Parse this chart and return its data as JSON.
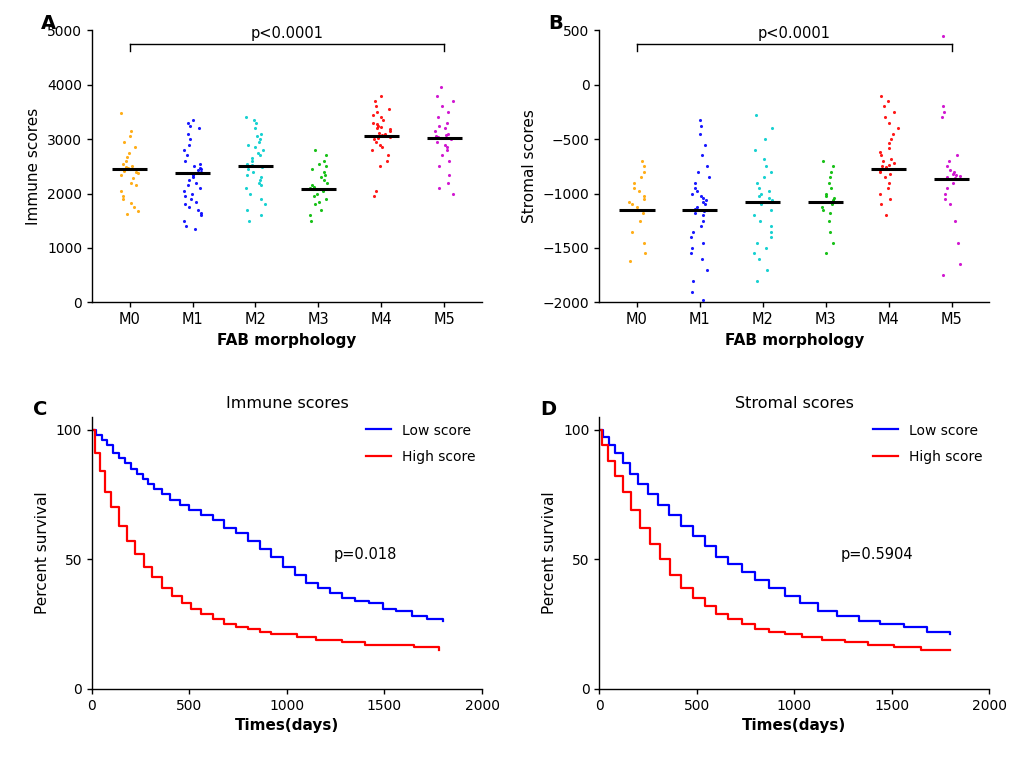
{
  "panel_A": {
    "title": "p<0.0001",
    "label": "A",
    "ylabel": "Immune scores",
    "xlabel": "FAB morphology",
    "categories": [
      "M0",
      "M1",
      "M2",
      "M3",
      "M4",
      "M5"
    ],
    "colors": [
      "#FFA500",
      "#0000FF",
      "#00CCCC",
      "#00BB00",
      "#FF0000",
      "#CC00CC"
    ],
    "medians": [
      2450,
      2380,
      2500,
      2080,
      3060,
      3020
    ],
    "ylim": [
      0,
      5000
    ],
    "yticks": [
      0,
      1000,
      2000,
      3000,
      4000,
      5000
    ],
    "data": {
      "M0": [
        1620,
        1680,
        1750,
        1820,
        1900,
        1960,
        2050,
        2150,
        2200,
        2280,
        2350,
        2380,
        2400,
        2420,
        2430,
        2440,
        2450,
        2460,
        2470,
        2480,
        2500,
        2550,
        2600,
        2680,
        2750,
        2850,
        2950,
        3050,
        3150,
        3480
      ],
      "M1": [
        1350,
        1400,
        1500,
        1600,
        1650,
        1700,
        1750,
        1800,
        1850,
        1900,
        1950,
        2000,
        2050,
        2100,
        2150,
        2200,
        2250,
        2300,
        2350,
        2380,
        2400,
        2430,
        2450,
        2470,
        2500,
        2550,
        2600,
        2700,
        2800,
        2900,
        3000,
        3100,
        3200,
        3250,
        3300,
        3350
      ],
      "M2": [
        1500,
        1600,
        1700,
        1800,
        1900,
        2000,
        2100,
        2150,
        2200,
        2250,
        2300,
        2350,
        2400,
        2450,
        2480,
        2500,
        2520,
        2550,
        2600,
        2650,
        2700,
        2750,
        2800,
        2850,
        2900,
        2950,
        3000,
        3050,
        3100,
        3200,
        3300,
        3350,
        3400
      ],
      "M3": [
        1500,
        1600,
        1700,
        1800,
        1850,
        1900,
        1950,
        2000,
        2050,
        2080,
        2100,
        2120,
        2150,
        2200,
        2250,
        2300,
        2350,
        2400,
        2450,
        2500,
        2550,
        2600,
        2700,
        2800
      ],
      "M4": [
        1950,
        2050,
        2500,
        2600,
        2700,
        2800,
        2850,
        2900,
        2950,
        3000,
        3020,
        3040,
        3060,
        3080,
        3100,
        3120,
        3150,
        3180,
        3200,
        3220,
        3250,
        3280,
        3300,
        3350,
        3400,
        3450,
        3500,
        3550,
        3600,
        3700,
        3800
      ],
      "M5": [
        2000,
        2100,
        2200,
        2350,
        2500,
        2600,
        2700,
        2800,
        2850,
        2900,
        2950,
        3000,
        3020,
        3040,
        3060,
        3080,
        3100,
        3150,
        3200,
        3250,
        3300,
        3400,
        3500,
        3600,
        3700,
        3800,
        3950
      ]
    }
  },
  "panel_B": {
    "title": "p<0.0001",
    "label": "B",
    "ylabel": "Stromal scores",
    "xlabel": "FAB morphology",
    "categories": [
      "M0",
      "M1",
      "M2",
      "M3",
      "M4",
      "M5"
    ],
    "colors": [
      "#FFA500",
      "#0000FF",
      "#00CCCC",
      "#00BB00",
      "#FF0000",
      "#CC00CC"
    ],
    "medians": [
      -1150,
      -1150,
      -1080,
      -1080,
      -770,
      -870
    ],
    "ylim": [
      -2000,
      500
    ],
    "yticks": [
      -2000,
      -1500,
      -1000,
      -500,
      0,
      500
    ],
    "data": {
      "M0": [
        -1620,
        -1550,
        -1450,
        -1350,
        -1250,
        -1180,
        -1150,
        -1120,
        -1100,
        -1080,
        -1050,
        -1020,
        -980,
        -950,
        -900,
        -850,
        -800,
        -750,
        -700
      ],
      "M1": [
        -1980,
        -1900,
        -1800,
        -1700,
        -1600,
        -1550,
        -1500,
        -1450,
        -1400,
        -1350,
        -1300,
        -1250,
        -1200,
        -1180,
        -1160,
        -1140,
        -1120,
        -1100,
        -1080,
        -1060,
        -1040,
        -1020,
        -1000,
        -980,
        -950,
        -900,
        -850,
        -800,
        -750,
        -650,
        -550,
        -450,
        -380,
        -320
      ],
      "M2": [
        -1800,
        -1700,
        -1600,
        -1550,
        -1500,
        -1450,
        -1400,
        -1350,
        -1300,
        -1250,
        -1200,
        -1150,
        -1100,
        -1080,
        -1060,
        -1040,
        -1020,
        -1000,
        -980,
        -950,
        -900,
        -850,
        -800,
        -750,
        -680,
        -600,
        -500,
        -400,
        -280
      ],
      "M3": [
        -1550,
        -1450,
        -1350,
        -1250,
        -1180,
        -1150,
        -1120,
        -1100,
        -1080,
        -1060,
        -1040,
        -1020,
        -1000,
        -950,
        -900,
        -850,
        -800,
        -750,
        -700
      ],
      "M4": [
        -1200,
        -1100,
        -1050,
        -1000,
        -950,
        -900,
        -850,
        -820,
        -800,
        -780,
        -770,
        -760,
        -750,
        -740,
        -720,
        -700,
        -680,
        -650,
        -620,
        -580,
        -540,
        -500,
        -450,
        -400,
        -350,
        -300,
        -250,
        -200,
        -150,
        -100
      ],
      "M5": [
        -1750,
        -1650,
        -1450,
        -1250,
        -1100,
        -1050,
        -1000,
        -950,
        -900,
        -870,
        -860,
        -850,
        -840,
        -830,
        -820,
        -800,
        -780,
        -750,
        -700,
        -650,
        -300,
        -250,
        -200,
        450
      ]
    }
  },
  "panel_C": {
    "title": "Immune scores",
    "label": "C",
    "ylabel": "Percent survival",
    "xlabel": "Times(days)",
    "pvalue": "p=0.018",
    "xlim": [
      0,
      2000
    ],
    "ylim": [
      0,
      105
    ],
    "xticks": [
      0,
      500,
      1000,
      1500,
      2000
    ],
    "yticks": [
      0,
      50,
      100
    ],
    "low_times": [
      0,
      20,
      50,
      80,
      110,
      140,
      170,
      200,
      230,
      260,
      290,
      320,
      360,
      400,
      450,
      500,
      560,
      620,
      680,
      740,
      800,
      860,
      920,
      980,
      1040,
      1100,
      1160,
      1220,
      1280,
      1350,
      1420,
      1490,
      1560,
      1640,
      1720,
      1800
    ],
    "low_surv": [
      100,
      98,
      96,
      94,
      91,
      89,
      87,
      85,
      83,
      81,
      79,
      77,
      75,
      73,
      71,
      69,
      67,
      65,
      62,
      60,
      57,
      54,
      51,
      47,
      44,
      41,
      39,
      37,
      35,
      34,
      33,
      31,
      30,
      28,
      27,
      26
    ],
    "high_times": [
      0,
      15,
      40,
      70,
      100,
      140,
      180,
      220,
      265,
      310,
      360,
      410,
      460,
      510,
      560,
      620,
      680,
      740,
      800,
      860,
      920,
      980,
      1050,
      1150,
      1280,
      1400,
      1520,
      1650,
      1780
    ],
    "high_surv": [
      100,
      91,
      84,
      76,
      70,
      63,
      57,
      52,
      47,
      43,
      39,
      36,
      33,
      31,
      29,
      27,
      25,
      24,
      23,
      22,
      21,
      21,
      20,
      19,
      18,
      17,
      17,
      16,
      15
    ]
  },
  "panel_D": {
    "title": "Stromal scores",
    "label": "D",
    "ylabel": "Percent survival",
    "xlabel": "Times(days)",
    "pvalue": "p=0.5904",
    "xlim": [
      0,
      2000
    ],
    "ylim": [
      0,
      105
    ],
    "xticks": [
      0,
      500,
      1000,
      1500,
      2000
    ],
    "yticks": [
      0,
      50,
      100
    ],
    "low_times": [
      0,
      20,
      50,
      80,
      120,
      160,
      200,
      250,
      300,
      360,
      420,
      480,
      540,
      600,
      660,
      730,
      800,
      870,
      950,
      1030,
      1120,
      1220,
      1330,
      1440,
      1560,
      1680,
      1800
    ],
    "low_surv": [
      100,
      97,
      94,
      91,
      87,
      83,
      79,
      75,
      71,
      67,
      63,
      59,
      55,
      51,
      48,
      45,
      42,
      39,
      36,
      33,
      30,
      28,
      26,
      25,
      24,
      22,
      21
    ],
    "high_times": [
      0,
      15,
      45,
      80,
      120,
      165,
      210,
      260,
      310,
      365,
      420,
      480,
      540,
      600,
      660,
      730,
      800,
      870,
      950,
      1040,
      1140,
      1260,
      1380,
      1510,
      1650,
      1800
    ],
    "high_surv": [
      100,
      94,
      88,
      82,
      76,
      69,
      62,
      56,
      50,
      44,
      39,
      35,
      32,
      29,
      27,
      25,
      23,
      22,
      21,
      20,
      19,
      18,
      17,
      16,
      15,
      15
    ]
  }
}
